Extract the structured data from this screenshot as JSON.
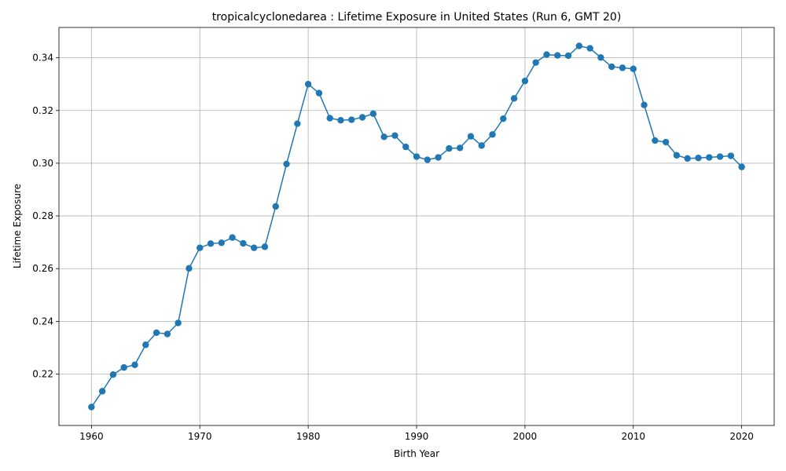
{
  "chart_data": {
    "type": "line",
    "title": "tropicalcyclonedarea : Lifetime Exposure in United States (Run 6, GMT 20)",
    "xlabel": "Birth Year",
    "ylabel": "Lifetime Exposure",
    "xlim": [
      1957,
      2023
    ],
    "ylim": [
      0.2005,
      0.3515
    ],
    "xticks": [
      1960,
      1970,
      1980,
      1990,
      2000,
      2010,
      2020
    ],
    "yticks": [
      0.22,
      0.24,
      0.26,
      0.28,
      0.3,
      0.32,
      0.34
    ],
    "ytick_labels": [
      "0.22",
      "0.24",
      "0.26",
      "0.28",
      "0.30",
      "0.32",
      "0.34"
    ],
    "grid": true,
    "line_color": "#1f77b4",
    "marker": "circle",
    "x": [
      1960,
      1961,
      1962,
      1963,
      1964,
      1965,
      1966,
      1967,
      1968,
      1969,
      1970,
      1971,
      1972,
      1973,
      1974,
      1975,
      1976,
      1977,
      1978,
      1979,
      1980,
      1981,
      1982,
      1983,
      1984,
      1985,
      1986,
      1987,
      1988,
      1989,
      1990,
      1991,
      1992,
      1993,
      1994,
      1995,
      1996,
      1997,
      1998,
      1999,
      2000,
      2001,
      2002,
      2003,
      2004,
      2005,
      2006,
      2007,
      2008,
      2009,
      2010,
      2011,
      2012,
      2013,
      2014,
      2015,
      2016,
      2017,
      2018,
      2019,
      2020
    ],
    "series": [
      {
        "values": [
          0.2075,
          0.2135,
          0.2198,
          0.2225,
          0.2235,
          0.2311,
          0.2357,
          0.2352,
          0.2394,
          0.2601,
          0.2679,
          0.2695,
          0.2698,
          0.2718,
          0.2696,
          0.2679,
          0.2683,
          0.2836,
          0.2997,
          0.315,
          0.33,
          0.3266,
          0.3171,
          0.3163,
          0.3165,
          0.3174,
          0.3188,
          0.31,
          0.3105,
          0.3062,
          0.3025,
          0.3013,
          0.3022,
          0.3056,
          0.3058,
          0.3102,
          0.3067,
          0.3109,
          0.3169,
          0.3246,
          0.3312,
          0.3382,
          0.3412,
          0.3409,
          0.3408,
          0.3445,
          0.3436,
          0.3401,
          0.3366,
          0.3362,
          0.3358,
          0.3221,
          0.3086,
          0.308,
          0.303,
          0.3018,
          0.302,
          0.3022,
          0.3025,
          0.3028,
          0.2986
        ]
      }
    ]
  }
}
